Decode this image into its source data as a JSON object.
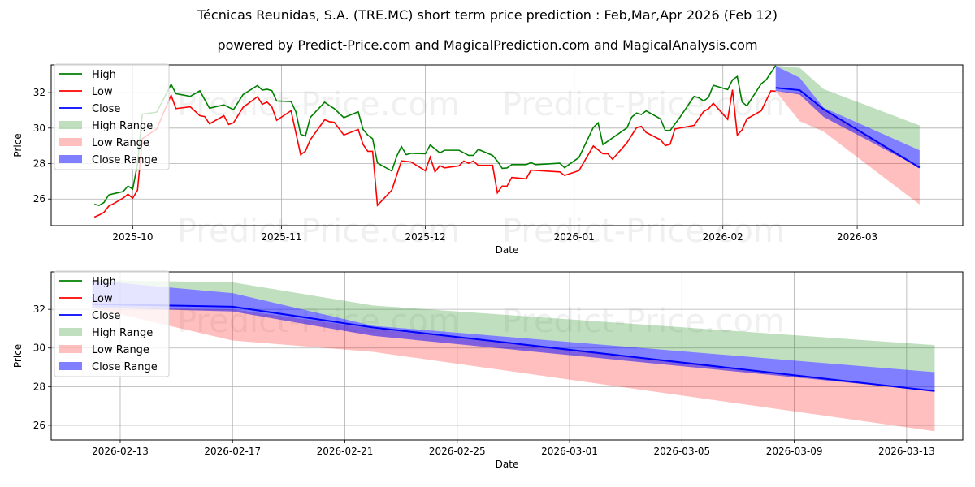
{
  "title": "Técnicas Reunidas, S.A. (TRE.MC) short term price prediction : Feb,Mar,Apr 2026 (Feb 12)",
  "subtitle": "powered by Predict-Price.com and MagicalPrediction.com and MagicalAnalysis.com",
  "watermark": "Predict-Price.com",
  "colors": {
    "high": "#008000",
    "low": "#ff0000",
    "close": "#0000ff"
  },
  "legend": [
    "High",
    "Low",
    "Close",
    "High Range",
    "Low Range",
    "Close Range"
  ],
  "chart_data": [
    {
      "type": "line",
      "xlabel": "Date",
      "ylabel": "Price",
      "xlim": [
        "2025-09-14",
        "2026-03-23"
      ],
      "ylim": [
        24.5,
        33.56
      ],
      "xticks": [
        {
          "date": "2025-10-01",
          "label": "2025-10"
        },
        {
          "date": "2025-11-01",
          "label": "2025-11"
        },
        {
          "date": "2025-12-01",
          "label": "2025-12"
        },
        {
          "date": "2026-01-01",
          "label": "2026-01"
        },
        {
          "date": "2026-02-01",
          "label": "2026-02"
        },
        {
          "date": "2026-03-01",
          "label": "2026-03"
        }
      ],
      "yticks": [
        26,
        28,
        30,
        32
      ],
      "grid": true,
      "legend_position": "top-left",
      "high": [
        [
          "2025-09-23",
          25.7
        ],
        [
          "2025-09-24",
          25.64
        ],
        [
          "2025-09-25",
          25.8
        ],
        [
          "2025-09-26",
          26.23
        ],
        [
          "2025-09-27",
          26.3
        ],
        [
          "2025-09-29",
          26.42
        ],
        [
          "2025-09-30",
          26.73
        ],
        [
          "2025-10-01",
          26.56
        ],
        [
          "2025-10-02",
          27.98
        ],
        [
          "2025-10-03",
          30.79
        ],
        [
          "2025-10-06",
          30.9
        ],
        [
          "2025-10-09",
          32.46
        ],
        [
          "2025-10-10",
          31.94
        ],
        [
          "2025-10-13",
          31.79
        ],
        [
          "2025-10-15",
          32.1
        ],
        [
          "2025-10-17",
          31.12
        ],
        [
          "2025-10-20",
          31.31
        ],
        [
          "2025-10-22",
          31.04
        ],
        [
          "2025-10-24",
          31.89
        ],
        [
          "2025-10-27",
          32.4
        ],
        [
          "2025-10-28",
          32.14
        ],
        [
          "2025-10-29",
          32.19
        ],
        [
          "2025-10-30",
          32.11
        ],
        [
          "2025-10-31",
          31.53
        ],
        [
          "2025-11-03",
          31.5
        ],
        [
          "2025-11-04",
          30.92
        ],
        [
          "2025-11-05",
          29.65
        ],
        [
          "2025-11-06",
          29.55
        ],
        [
          "2025-11-07",
          30.6
        ],
        [
          "2025-11-10",
          31.46
        ],
        [
          "2025-11-11",
          31.27
        ],
        [
          "2025-11-12",
          31.1
        ],
        [
          "2025-11-14",
          30.59
        ],
        [
          "2025-11-17",
          30.92
        ],
        [
          "2025-11-18",
          29.93
        ],
        [
          "2025-11-19",
          29.6
        ],
        [
          "2025-11-20",
          29.4
        ],
        [
          "2025-11-21",
          28.03
        ],
        [
          "2025-11-24",
          27.58
        ],
        [
          "2025-11-25",
          28.4
        ],
        [
          "2025-11-26",
          28.96
        ],
        [
          "2025-11-27",
          28.5
        ],
        [
          "2025-11-28",
          28.58
        ],
        [
          "2025-12-01",
          28.55
        ],
        [
          "2025-12-02",
          29.05
        ],
        [
          "2025-12-04",
          28.6
        ],
        [
          "2025-12-05",
          28.75
        ],
        [
          "2025-12-08",
          28.75
        ],
        [
          "2025-12-10",
          28.46
        ],
        [
          "2025-12-11",
          28.46
        ],
        [
          "2025-12-12",
          28.8
        ],
        [
          "2025-12-15",
          28.46
        ],
        [
          "2025-12-16",
          28.14
        ],
        [
          "2025-12-17",
          27.73
        ],
        [
          "2025-12-18",
          27.75
        ],
        [
          "2025-12-19",
          27.94
        ],
        [
          "2025-12-22",
          27.94
        ],
        [
          "2025-12-23",
          28.05
        ],
        [
          "2025-12-24",
          27.94
        ],
        [
          "2025-12-29",
          28.02
        ],
        [
          "2025-12-30",
          27.77
        ],
        [
          "2026-01-02",
          28.34
        ],
        [
          "2026-01-05",
          30.04
        ],
        [
          "2026-01-06",
          30.29
        ],
        [
          "2026-01-07",
          29.07
        ],
        [
          "2026-01-12",
          30.01
        ],
        [
          "2026-01-13",
          30.62
        ],
        [
          "2026-01-14",
          30.85
        ],
        [
          "2026-01-15",
          30.77
        ],
        [
          "2026-01-16",
          30.97
        ],
        [
          "2026-01-19",
          30.52
        ],
        [
          "2026-01-20",
          29.86
        ],
        [
          "2026-01-21",
          29.86
        ],
        [
          "2026-01-23",
          30.59
        ],
        [
          "2026-01-26",
          31.79
        ],
        [
          "2026-01-27",
          31.71
        ],
        [
          "2026-01-28",
          31.53
        ],
        [
          "2026-01-29",
          31.73
        ],
        [
          "2026-01-30",
          32.41
        ],
        [
          "2026-02-02",
          32.17
        ],
        [
          "2026-02-03",
          32.72
        ],
        [
          "2026-02-04",
          32.91
        ],
        [
          "2026-02-05",
          31.47
        ],
        [
          "2026-02-06",
          31.25
        ],
        [
          "2026-02-09",
          32.5
        ],
        [
          "2026-02-10",
          32.71
        ],
        [
          "2026-02-12",
          33.52
        ]
      ],
      "low": [
        [
          "2025-09-23",
          24.98
        ],
        [
          "2025-09-24",
          25.1
        ],
        [
          "2025-09-25",
          25.25
        ],
        [
          "2025-09-26",
          25.6
        ],
        [
          "2025-09-27",
          25.74
        ],
        [
          "2025-09-29",
          26.05
        ],
        [
          "2025-09-30",
          26.27
        ],
        [
          "2025-10-01",
          26.05
        ],
        [
          "2025-10-02",
          26.5
        ],
        [
          "2025-10-03",
          29.4
        ],
        [
          "2025-10-06",
          29.95
        ],
        [
          "2025-10-09",
          31.85
        ],
        [
          "2025-10-10",
          31.1
        ],
        [
          "2025-10-13",
          31.2
        ],
        [
          "2025-10-15",
          30.7
        ],
        [
          "2025-10-16",
          30.65
        ],
        [
          "2025-10-17",
          30.24
        ],
        [
          "2025-10-20",
          30.7
        ],
        [
          "2025-10-21",
          30.2
        ],
        [
          "2025-10-22",
          30.3
        ],
        [
          "2025-10-24",
          31.17
        ],
        [
          "2025-10-27",
          31.77
        ],
        [
          "2025-10-28",
          31.34
        ],
        [
          "2025-10-29",
          31.47
        ],
        [
          "2025-10-30",
          31.2
        ],
        [
          "2025-10-31",
          30.44
        ],
        [
          "2025-11-03",
          30.98
        ],
        [
          "2025-11-05",
          28.5
        ],
        [
          "2025-11-06",
          28.7
        ],
        [
          "2025-11-07",
          29.34
        ],
        [
          "2025-11-10",
          30.47
        ],
        [
          "2025-11-11",
          30.36
        ],
        [
          "2025-11-12",
          30.33
        ],
        [
          "2025-11-14",
          29.61
        ],
        [
          "2025-11-17",
          29.92
        ],
        [
          "2025-11-18",
          29.08
        ],
        [
          "2025-11-19",
          28.69
        ],
        [
          "2025-11-20",
          28.69
        ],
        [
          "2025-11-21",
          25.64
        ],
        [
          "2025-11-24",
          26.5
        ],
        [
          "2025-11-26",
          28.15
        ],
        [
          "2025-11-28",
          28.09
        ],
        [
          "2025-12-01",
          27.59
        ],
        [
          "2025-12-02",
          28.36
        ],
        [
          "2025-12-03",
          27.53
        ],
        [
          "2025-12-04",
          27.88
        ],
        [
          "2025-12-05",
          27.76
        ],
        [
          "2025-12-08",
          27.87
        ],
        [
          "2025-12-09",
          28.14
        ],
        [
          "2025-12-10",
          28.02
        ],
        [
          "2025-12-11",
          28.14
        ],
        [
          "2025-12-12",
          27.9
        ],
        [
          "2025-12-15",
          27.9
        ],
        [
          "2025-12-16",
          26.35
        ],
        [
          "2025-12-17",
          26.73
        ],
        [
          "2025-12-18",
          26.72
        ],
        [
          "2025-12-19",
          27.22
        ],
        [
          "2025-12-22",
          27.14
        ],
        [
          "2025-12-23",
          27.63
        ],
        [
          "2025-12-29",
          27.53
        ],
        [
          "2025-12-30",
          27.33
        ],
        [
          "2026-01-02",
          27.6
        ],
        [
          "2026-01-05",
          28.99
        ],
        [
          "2026-01-07",
          28.55
        ],
        [
          "2026-01-08",
          28.56
        ],
        [
          "2026-01-09",
          28.24
        ],
        [
          "2026-01-12",
          29.17
        ],
        [
          "2026-01-14",
          30.02
        ],
        [
          "2026-01-15",
          30.1
        ],
        [
          "2026-01-16",
          29.75
        ],
        [
          "2026-01-19",
          29.34
        ],
        [
          "2026-01-20",
          29.01
        ],
        [
          "2026-01-21",
          29.09
        ],
        [
          "2026-01-22",
          29.95
        ],
        [
          "2026-01-26",
          30.15
        ],
        [
          "2026-01-28",
          30.94
        ],
        [
          "2026-01-29",
          31.09
        ],
        [
          "2026-01-30",
          31.4
        ],
        [
          "2026-02-02",
          30.49
        ],
        [
          "2026-02-03",
          32.16
        ],
        [
          "2026-02-04",
          29.6
        ],
        [
          "2026-02-05",
          29.9
        ],
        [
          "2026-02-06",
          30.52
        ],
        [
          "2026-02-09",
          30.98
        ],
        [
          "2026-02-11",
          32.1
        ],
        [
          "2026-02-12",
          32.08
        ]
      ]
    },
    {
      "type": "line",
      "xlabel": "Date",
      "ylabel": "Price",
      "xlim": [
        "2026-02-10T13:00",
        "2026-03-15"
      ],
      "ylim": [
        25.24,
        33.94
      ],
      "xticks": [
        {
          "date": "2026-02-13",
          "label": "2026-02-13"
        },
        {
          "date": "2026-02-17",
          "label": "2026-02-17"
        },
        {
          "date": "2026-02-21",
          "label": "2026-02-21"
        },
        {
          "date": "2026-02-25",
          "label": "2026-02-25"
        },
        {
          "date": "2026-03-01",
          "label": "2026-03-01"
        },
        {
          "date": "2026-03-05",
          "label": "2026-03-05"
        },
        {
          "date": "2026-03-09",
          "label": "2026-03-09"
        },
        {
          "date": "2026-03-13",
          "label": "2026-03-13"
        }
      ],
      "yticks": [
        26,
        28,
        30,
        32
      ],
      "grid": true,
      "legend_position": "top-left"
    }
  ],
  "forecast": {
    "dates": [
      "2026-02-12",
      "2026-02-17",
      "2026-02-22",
      "2026-03-14"
    ],
    "close": [
      32.27,
      32.14,
      31.06,
      27.77
    ],
    "close_upper": [
      33.5,
      32.84,
      31.15,
      28.75
    ],
    "close_lower": [
      32.1,
      31.89,
      30.63,
      27.77
    ],
    "high_upper": [
      33.52,
      33.4,
      32.2,
      30.15
    ],
    "high_lower": [
      33.5,
      32.84,
      31.15,
      28.75
    ],
    "low_upper": [
      32.1,
      32.0,
      31.0,
      27.8
    ],
    "low_lower": [
      32.08,
      30.39,
      29.8,
      25.69
    ]
  }
}
